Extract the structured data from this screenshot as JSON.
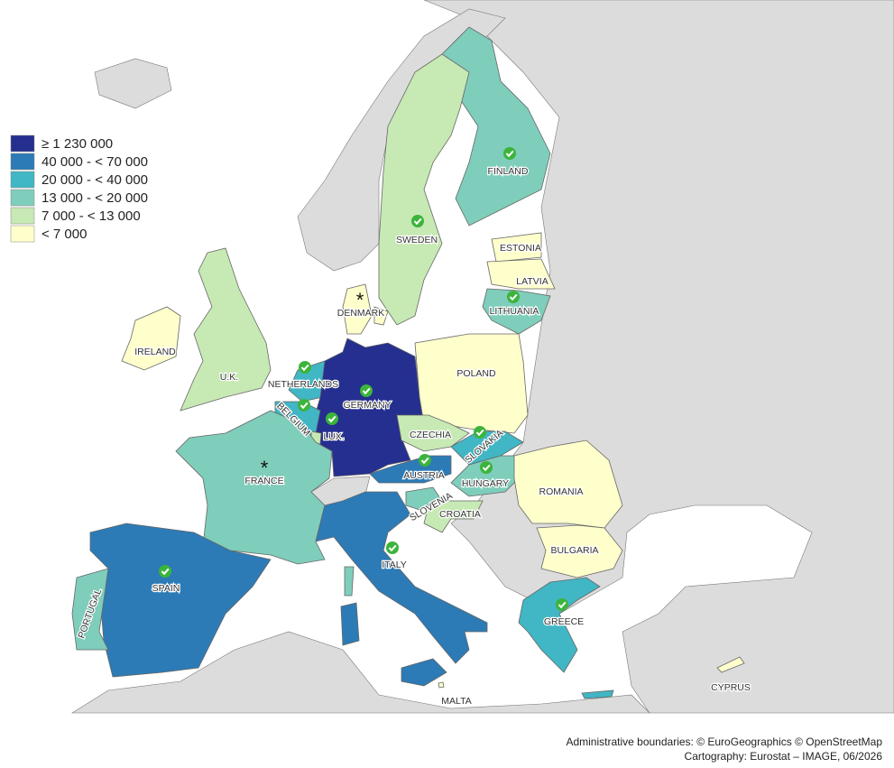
{
  "legend": [
    {
      "label": "≥ 1 230 000",
      "color": "#252f8f"
    },
    {
      "label": "40 000 - < 70 000",
      "color": "#2c7bb6"
    },
    {
      "label": "20 000 - < 40 000",
      "color": "#41b6c4"
    },
    {
      "label": "13 000 - < 20 000",
      "color": "#7fcdbb"
    },
    {
      "label": "7 000 - < 13 000",
      "color": "#c7e9b4"
    },
    {
      "label": "< 7 000",
      "color": "#ffffcc"
    }
  ],
  "countries": [
    {
      "name": "FINLAND",
      "class": 3,
      "check": true
    },
    {
      "name": "SWEDEN",
      "class": 4,
      "check": true
    },
    {
      "name": "ESTONIA",
      "class": 5,
      "check": false
    },
    {
      "name": "LATVIA",
      "class": 5,
      "check": false
    },
    {
      "name": "LITHUANIA",
      "class": 3,
      "check": true
    },
    {
      "name": "DENMARK",
      "class": 5,
      "check": false,
      "marker": "*"
    },
    {
      "name": "IRELAND",
      "class": 5,
      "check": false
    },
    {
      "name": "U.K.",
      "class": 4,
      "check": false
    },
    {
      "name": "NETHERLANDS",
      "class": 2,
      "check": true
    },
    {
      "name": "GERMANY",
      "class": 0,
      "check": true
    },
    {
      "name": "POLAND",
      "class": 5,
      "check": false
    },
    {
      "name": "BELGIUM",
      "class": 2,
      "check": true
    },
    {
      "name": "LUX.",
      "class": 4,
      "check": true
    },
    {
      "name": "CZECHIA",
      "class": 4,
      "check": false
    },
    {
      "name": "SLOVAKIA",
      "class": 2,
      "check": true
    },
    {
      "name": "AUSTRIA",
      "class": 1,
      "check": true
    },
    {
      "name": "HUNGARY",
      "class": 3,
      "check": true
    },
    {
      "name": "FRANCE",
      "class": 3,
      "check": false,
      "marker": "*"
    },
    {
      "name": "SLOVENIA",
      "class": 3,
      "check": false
    },
    {
      "name": "CROATIA",
      "class": 4,
      "check": false
    },
    {
      "name": "ROMANIA",
      "class": 5,
      "check": false
    },
    {
      "name": "BULGARIA",
      "class": 5,
      "check": false
    },
    {
      "name": "ITALY",
      "class": 1,
      "check": true
    },
    {
      "name": "SPAIN",
      "class": 1,
      "check": true
    },
    {
      "name": "PORTUGAL",
      "class": 3,
      "check": false
    },
    {
      "name": "GREECE",
      "class": 2,
      "check": true
    },
    {
      "name": "CYPRUS",
      "class": 5,
      "check": false
    },
    {
      "name": "MALTA",
      "class": 5,
      "check": false
    }
  ],
  "credits": [
    "Administrative boundaries: © EuroGeographics © OpenStreetMap",
    "Cartography: Eurostat – IMAGE, 06/2026"
  ]
}
